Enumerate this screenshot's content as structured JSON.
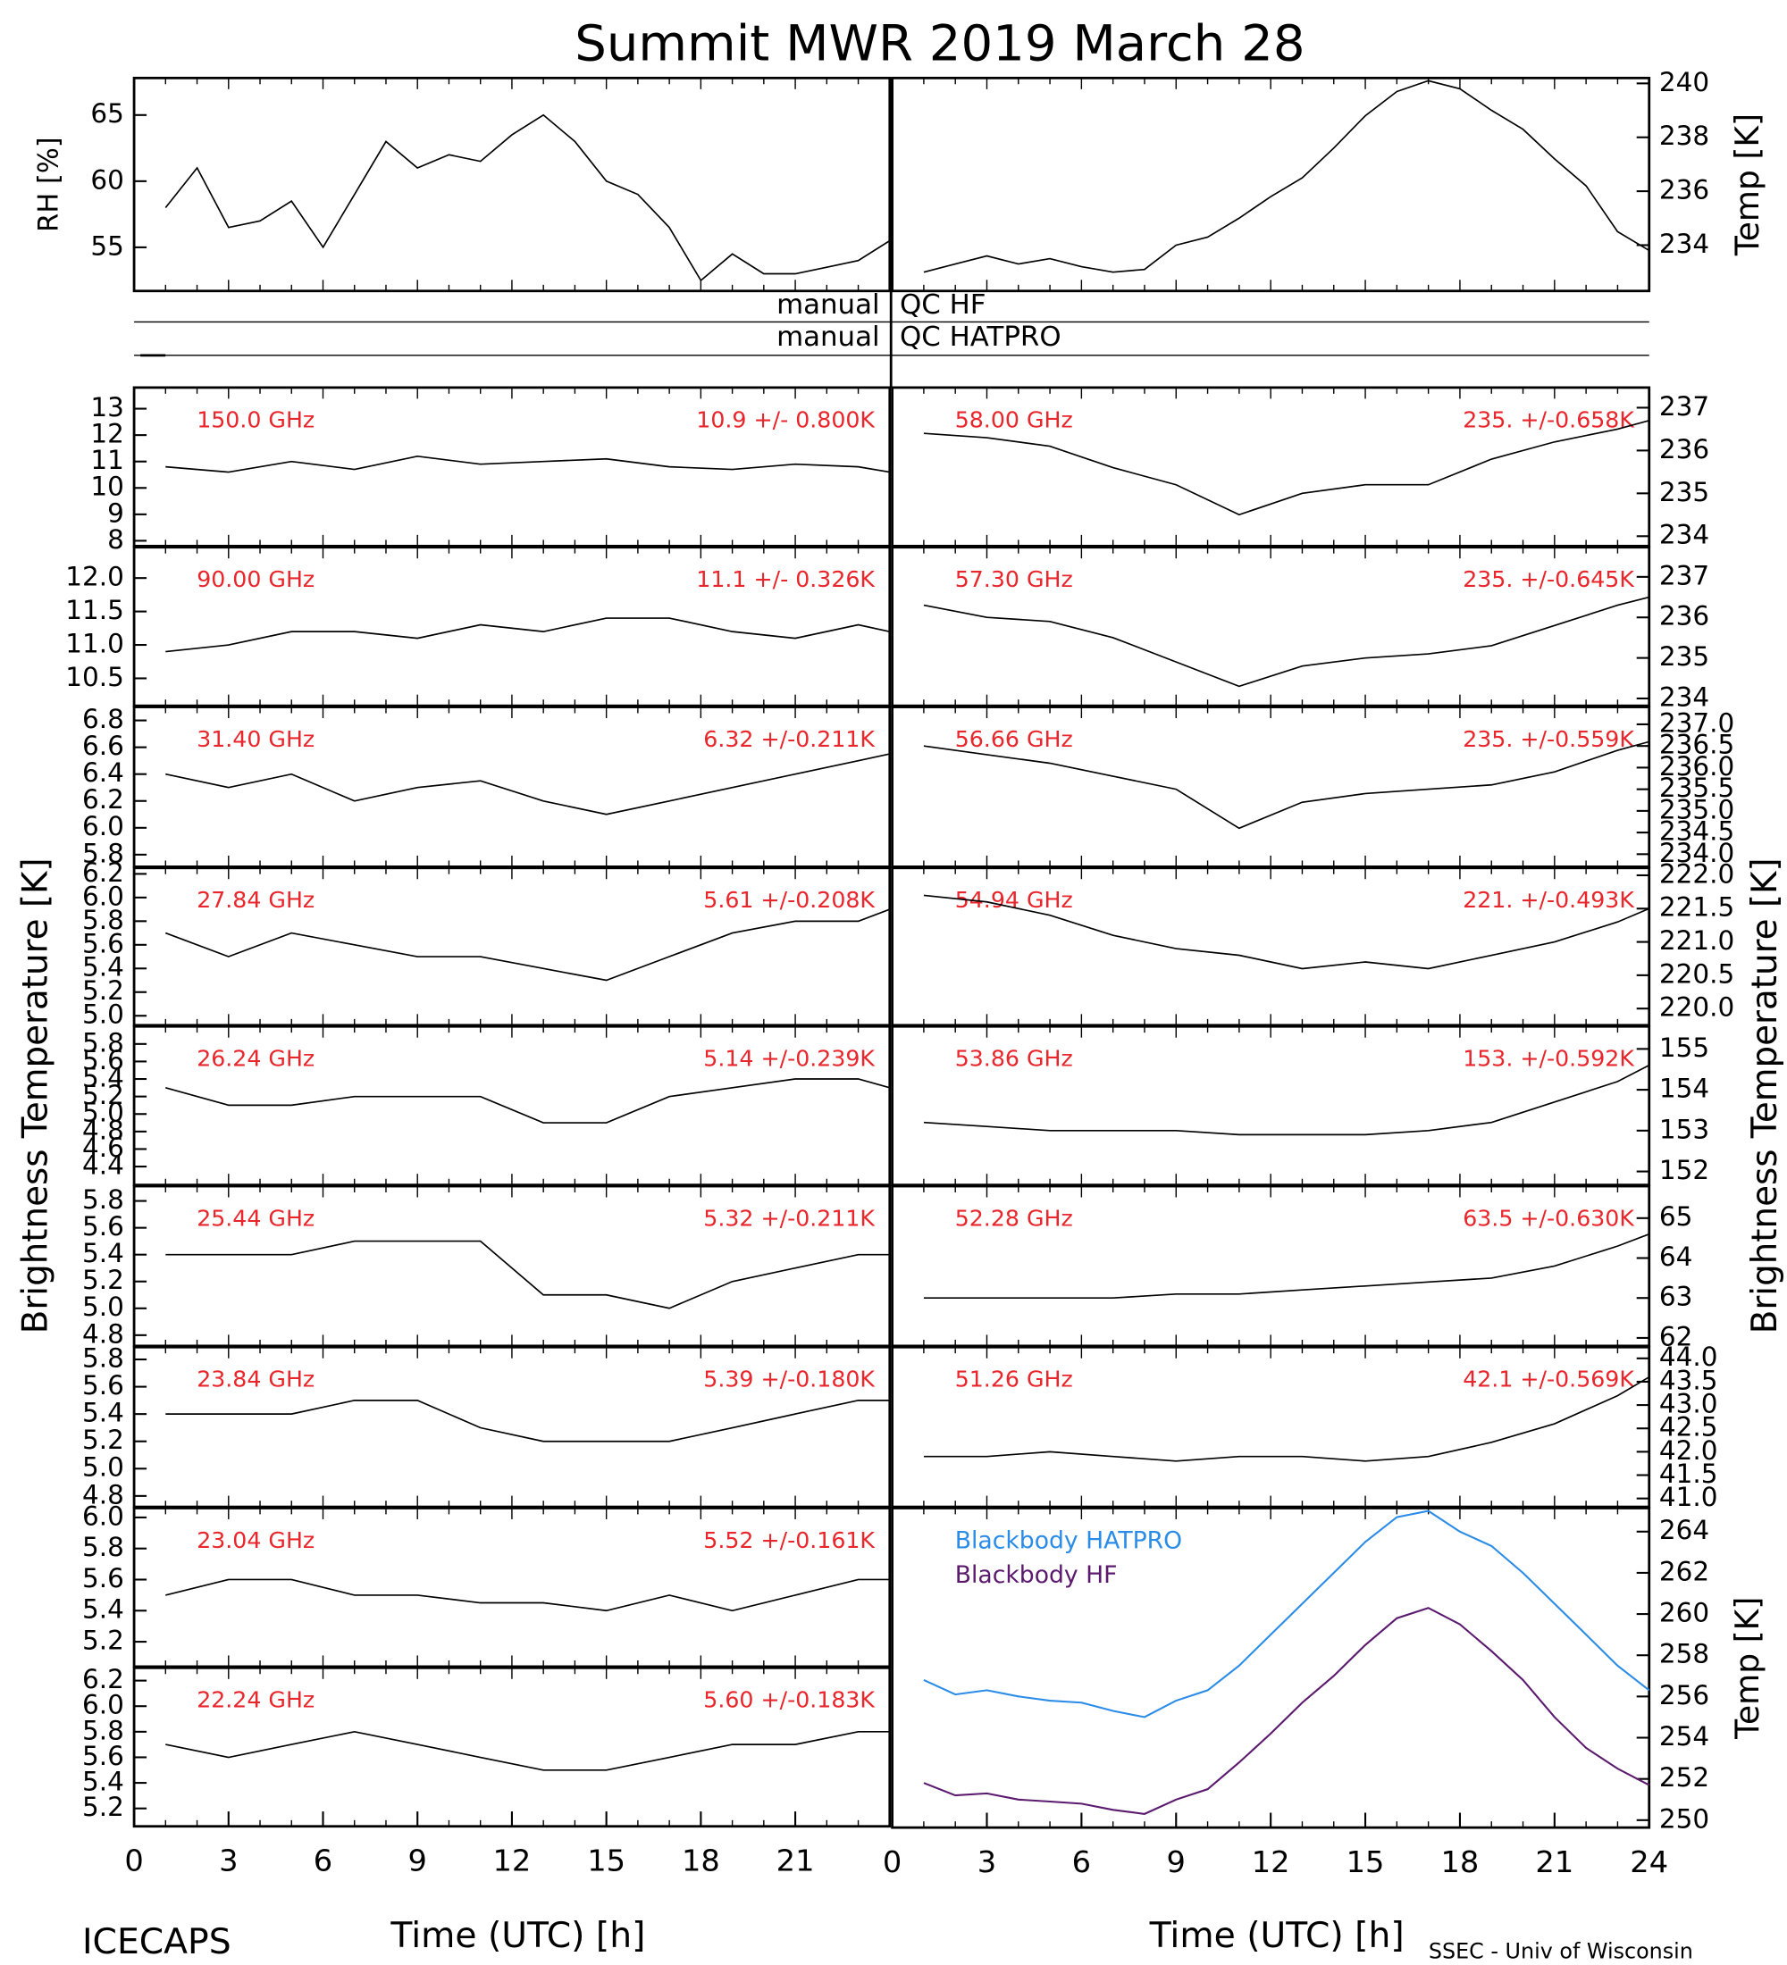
{
  "title": "Summit MWR 2019 March 28",
  "footer_left": "ICECAPS",
  "footer_right": "SSEC - Univ of Wisconsin",
  "ylabel_brightness": "Brightness Temperature [K]",
  "qc_rows": [
    {
      "left": "manual",
      "right": "QC HF"
    },
    {
      "left": "manual",
      "right": "QC HATPRO"
    }
  ],
  "chart_data": [
    {
      "type": "line",
      "ylabel": "RH [%]",
      "color": "#000000",
      "xlim": [
        0,
        24
      ],
      "ylim": [
        51.7,
        67.8
      ],
      "yticks": [
        55,
        60,
        65
      ],
      "x": [
        1,
        2,
        3,
        4,
        5,
        6,
        7,
        8,
        9,
        10,
        11,
        12,
        13,
        14,
        15,
        16,
        17,
        18,
        19,
        20,
        21,
        22,
        23,
        24
      ],
      "values": [
        58,
        61,
        56.5,
        57,
        58.5,
        55,
        59,
        63,
        61,
        62,
        61.5,
        63.5,
        65,
        63,
        60,
        59,
        56.5,
        52.5,
        54.5,
        53,
        53,
        53.5,
        54,
        55.5
      ]
    },
    {
      "type": "line",
      "ylabel": "Temp [K]",
      "color": "#000000",
      "xlim": [
        0,
        24
      ],
      "ylim": [
        232.3,
        240.2
      ],
      "yticks": [
        234,
        236,
        238,
        240
      ],
      "x": [
        1,
        2,
        3,
        4,
        5,
        6,
        7,
        8,
        9,
        10,
        11,
        12,
        13,
        14,
        15,
        16,
        17,
        18,
        19,
        20,
        21,
        22,
        23,
        24
      ],
      "values": [
        233,
        233.3,
        233.6,
        233.3,
        233.5,
        233.2,
        233,
        233.1,
        234,
        234.3,
        235,
        235.8,
        236.5,
        237.6,
        238.8,
        239.7,
        240.1,
        239.8,
        239,
        238.3,
        237.2,
        236.2,
        234.5,
        233.8
      ]
    },
    {
      "type": "line",
      "label": "150.0 GHz",
      "annotation": "10.9 +/- 0.800K",
      "color": "#000000",
      "xlim": [
        0,
        24
      ],
      "ylim": [
        7.8,
        13.8
      ],
      "yticks": [
        8,
        9,
        10,
        11,
        12,
        13
      ],
      "x": [
        1,
        3,
        5,
        7,
        9,
        11,
        13,
        15,
        17,
        19,
        21,
        23,
        24
      ],
      "values": [
        10.8,
        10.6,
        11,
        10.7,
        11.2,
        10.9,
        11,
        11.1,
        10.8,
        10.7,
        10.9,
        10.8,
        10.6
      ]
    },
    {
      "type": "line",
      "label": "90.00 GHz",
      "annotation": "11.1 +/- 0.326K",
      "color": "#000000",
      "xlim": [
        0,
        24
      ],
      "ylim": [
        10.09,
        12.46
      ],
      "yticks": [
        10.5,
        {
          "value": 11,
          "label": "11.0"
        },
        11.5,
        {
          "value": 12,
          "label": "12.0"
        }
      ],
      "x": [
        1,
        3,
        5,
        7,
        9,
        11,
        13,
        15,
        17,
        19,
        21,
        23,
        24
      ],
      "values": [
        10.9,
        11,
        11.2,
        11.2,
        11.1,
        11.3,
        11.2,
        11.4,
        11.4,
        11.2,
        11.1,
        11.3,
        11.2
      ]
    },
    {
      "type": "line",
      "label": "31.40 GHz",
      "annotation": "6.32 +/-0.211K",
      "color": "#000000",
      "xlim": [
        0,
        24
      ],
      "ylim": [
        5.71,
        6.9
      ],
      "yticks": [
        5.8,
        {
          "value": 6,
          "label": "6.0"
        },
        6.2,
        6.4,
        6.6,
        6.8
      ],
      "x": [
        1,
        3,
        5,
        7,
        9,
        11,
        13,
        15,
        17,
        19,
        21,
        23,
        24
      ],
      "values": [
        6.4,
        6.3,
        6.4,
        6.2,
        6.3,
        6.35,
        6.2,
        6.1,
        6.2,
        6.3,
        6.4,
        6.5,
        6.55
      ]
    },
    {
      "type": "line",
      "label": "27.84 GHz",
      "annotation": "5.61 +/-0.208K",
      "color": "#000000",
      "xlim": [
        0,
        24
      ],
      "ylim": [
        4.92,
        6.25
      ],
      "yticks": [
        {
          "value": 5,
          "label": "5.0"
        },
        5.2,
        5.4,
        5.6,
        5.8,
        {
          "value": 6,
          "label": "6.0"
        },
        6.2
      ],
      "x": [
        1,
        3,
        5,
        7,
        9,
        11,
        13,
        15,
        17,
        19,
        21,
        23,
        24
      ],
      "values": [
        5.7,
        5.5,
        5.7,
        5.6,
        5.5,
        5.5,
        5.4,
        5.3,
        5.5,
        5.7,
        5.8,
        5.8,
        5.9
      ]
    },
    {
      "type": "line",
      "label": "26.24 GHz",
      "annotation": "5.14 +/-0.239K",
      "color": "#000000",
      "xlim": [
        0,
        24
      ],
      "ylim": [
        4.19,
        6
      ],
      "yticks": [
        4.4,
        4.6,
        4.8,
        {
          "value": 5,
          "label": "5.0"
        },
        5.2,
        5.4,
        5.6,
        5.8
      ],
      "x": [
        1,
        3,
        5,
        7,
        9,
        11,
        13,
        15,
        17,
        19,
        21,
        23,
        24
      ],
      "values": [
        5.3,
        5.1,
        5.1,
        5.2,
        5.2,
        5.2,
        4.9,
        4.9,
        5.2,
        5.3,
        5.4,
        5.4,
        5.3
      ]
    },
    {
      "type": "line",
      "label": "25.44 GHz",
      "annotation": "5.32 +/-0.211K",
      "color": "#000000",
      "xlim": [
        0,
        24
      ],
      "ylim": [
        4.72,
        5.91
      ],
      "yticks": [
        4.8,
        {
          "value": 5,
          "label": "5.0"
        },
        5.2,
        5.4,
        5.6,
        5.8
      ],
      "x": [
        1,
        3,
        5,
        7,
        9,
        11,
        13,
        15,
        17,
        19,
        21,
        23,
        24
      ],
      "values": [
        5.4,
        5.4,
        5.4,
        5.5,
        5.5,
        5.5,
        5.1,
        5.1,
        5,
        5.2,
        5.3,
        5.4,
        5.4
      ]
    },
    {
      "type": "line",
      "label": "23.84 GHz",
      "annotation": "5.39 +/-0.180K",
      "color": "#000000",
      "xlim": [
        0,
        24
      ],
      "ylim": [
        4.72,
        5.89
      ],
      "yticks": [
        4.8,
        {
          "value": 5,
          "label": "5.0"
        },
        5.2,
        5.4,
        5.6,
        5.8
      ],
      "x": [
        1,
        3,
        5,
        7,
        9,
        11,
        13,
        15,
        17,
        19,
        21,
        23,
        24
      ],
      "values": [
        5.4,
        5.4,
        5.4,
        5.5,
        5.5,
        5.3,
        5.2,
        5.2,
        5.2,
        5.3,
        5.4,
        5.5,
        5.5
      ]
    },
    {
      "type": "line",
      "label": "23.04 GHz",
      "annotation": "5.52 +/-0.161K",
      "color": "#000000",
      "xlim": [
        0,
        24
      ],
      "ylim": [
        5.04,
        6.06
      ],
      "yticks": [
        5.2,
        5.4,
        5.6,
        5.8,
        {
          "value": 6,
          "label": "6.0"
        }
      ],
      "x": [
        1,
        3,
        5,
        7,
        9,
        11,
        13,
        15,
        17,
        19,
        21,
        23,
        24
      ],
      "values": [
        5.5,
        5.6,
        5.6,
        5.5,
        5.5,
        5.45,
        5.45,
        5.4,
        5.5,
        5.4,
        5.5,
        5.6,
        5.6
      ]
    },
    {
      "type": "line",
      "label": "22.24 GHz",
      "annotation": "5.60 +/-0.183K",
      "color": "#000000",
      "xlim": [
        0,
        24
      ],
      "ylim": [
        5.06,
        6.3
      ],
      "yticks": [
        5.2,
        5.4,
        5.6,
        5.8,
        {
          "value": 6,
          "label": "6.0"
        },
        6.2
      ],
      "xticks": [
        0,
        3,
        6,
        9,
        12,
        15,
        18,
        21
      ],
      "xlabel": "Time (UTC) [h]",
      "x": [
        1,
        3,
        5,
        7,
        9,
        11,
        13,
        15,
        17,
        19,
        21,
        23,
        24
      ],
      "values": [
        5.7,
        5.6,
        5.7,
        5.8,
        5.7,
        5.6,
        5.5,
        5.5,
        5.6,
        5.7,
        5.7,
        5.8,
        5.8
      ]
    },
    {
      "type": "line",
      "label": "58.00 GHz",
      "annotation": "235. +/-0.658K",
      "color": "#000000",
      "xlim": [
        0,
        24
      ],
      "ylim": [
        233.77,
        237.47
      ],
      "yticks": [
        234,
        235,
        236,
        237
      ],
      "x": [
        1,
        3,
        5,
        7,
        9,
        11,
        13,
        15,
        17,
        19,
        21,
        23,
        24
      ],
      "values": [
        236.4,
        236.3,
        236.1,
        235.6,
        235.2,
        234.5,
        235,
        235.2,
        235.2,
        235.8,
        236.2,
        236.5,
        236.7
      ]
    },
    {
      "type": "line",
      "label": "57.30 GHz",
      "annotation": "235. +/-0.645K",
      "color": "#000000",
      "xlim": [
        0,
        24
      ],
      "ylim": [
        233.82,
        237.73
      ],
      "yticks": [
        234,
        235,
        236,
        237
      ],
      "x": [
        1,
        3,
        5,
        7,
        9,
        11,
        13,
        15,
        17,
        19,
        21,
        23,
        24
      ],
      "values": [
        236.3,
        236,
        235.9,
        235.5,
        234.9,
        234.3,
        234.8,
        235,
        235.1,
        235.3,
        235.8,
        236.3,
        236.5
      ]
    },
    {
      "type": "line",
      "label": "56.66 GHz",
      "annotation": "235. +/-0.559K",
      "color": "#000000",
      "xlim": [
        0,
        24
      ],
      "ylim": [
        233.71,
        237.4
      ],
      "yticks": [
        {
          "value": 234,
          "label": "234.0"
        },
        234.5,
        {
          "value": 235,
          "label": "235.0"
        },
        235.5,
        {
          "value": 236,
          "label": "236.0"
        },
        236.5,
        {
          "value": 237,
          "label": "237.0"
        }
      ],
      "x": [
        1,
        3,
        5,
        7,
        9,
        11,
        13,
        15,
        17,
        19,
        21,
        23,
        24
      ],
      "values": [
        236.5,
        236.3,
        236.1,
        235.8,
        235.5,
        234.6,
        235.2,
        235.4,
        235.5,
        235.6,
        235.9,
        236.4,
        236.6
      ]
    },
    {
      "type": "line",
      "label": "54.94 GHz",
      "annotation": "221. +/-0.493K",
      "color": "#000000",
      "xlim": [
        0,
        24
      ],
      "ylim": [
        219.75,
        222.11
      ],
      "yticks": [
        {
          "value": 220,
          "label": "220.0"
        },
        220.5,
        {
          "value": 221,
          "label": "221.0"
        },
        221.5,
        {
          "value": 222,
          "label": "222.0"
        }
      ],
      "x": [
        1,
        3,
        5,
        7,
        9,
        11,
        13,
        15,
        17,
        19,
        21,
        23,
        24
      ],
      "values": [
        221.7,
        221.6,
        221.4,
        221.1,
        220.9,
        220.8,
        220.6,
        220.7,
        220.6,
        220.8,
        221,
        221.3,
        221.5
      ]
    },
    {
      "type": "line",
      "label": "53.86 GHz",
      "annotation": "153. +/-0.592K",
      "color": "#000000",
      "xlim": [
        0,
        24
      ],
      "ylim": [
        151.67,
        155.55
      ],
      "yticks": [
        152,
        153,
        154,
        155
      ],
      "x": [
        1,
        3,
        5,
        7,
        9,
        11,
        13,
        15,
        17,
        19,
        21,
        23,
        24
      ],
      "values": [
        153.2,
        153.1,
        153,
        153,
        153,
        152.9,
        152.9,
        152.9,
        153,
        153.2,
        153.7,
        154.2,
        154.6
      ]
    },
    {
      "type": "line",
      "label": "52.28 GHz",
      "annotation": "63.5 +/-0.630K",
      "color": "#000000",
      "xlim": [
        0,
        24
      ],
      "ylim": [
        61.8,
        65.8
      ],
      "yticks": [
        62,
        63,
        64,
        65
      ],
      "x": [
        1,
        3,
        5,
        7,
        9,
        11,
        13,
        15,
        17,
        19,
        21,
        23,
        24
      ],
      "values": [
        63,
        63,
        63,
        63,
        63.1,
        63.1,
        63.2,
        63.3,
        63.4,
        63.5,
        63.8,
        64.3,
        64.6
      ]
    },
    {
      "type": "line",
      "label": "51.26 GHz",
      "annotation": "42.1 +/-0.569K",
      "color": "#000000",
      "xlim": [
        0,
        24
      ],
      "ylim": [
        40.82,
        44.24
      ],
      "yticks": [
        {
          "value": 41,
          "label": "41.0"
        },
        41.5,
        {
          "value": 42,
          "label": "42.0"
        },
        42.5,
        {
          "value": 43,
          "label": "43.0"
        },
        43.5,
        {
          "value": 44,
          "label": "44.0"
        }
      ],
      "x": [
        1,
        3,
        5,
        7,
        9,
        11,
        13,
        15,
        17,
        19,
        21,
        23,
        24
      ],
      "values": [
        41.9,
        41.9,
        42,
        41.9,
        41.8,
        41.9,
        41.9,
        41.8,
        41.9,
        42.2,
        42.6,
        43.2,
        43.6
      ]
    },
    {
      "type": "line",
      "ylabel": "Temp [K]",
      "xlim": [
        0,
        24
      ],
      "ylim": [
        249.64,
        265.14
      ],
      "yticks": [
        250,
        252,
        254,
        256,
        258,
        260,
        262,
        264
      ],
      "xticks": [
        0,
        3,
        6,
        9,
        12,
        15,
        18,
        21,
        24
      ],
      "xlabel": "Time (UTC) [h]",
      "x": [
        1,
        2,
        3,
        4,
        5,
        6,
        7,
        8,
        9,
        10,
        11,
        12,
        13,
        14,
        15,
        16,
        17,
        18,
        19,
        20,
        21,
        22,
        23,
        24
      ],
      "series": [
        {
          "name": "Blackbody HATPRO",
          "color": "#2b8ce8",
          "values": [
            256.8,
            256.1,
            256.3,
            256,
            255.8,
            255.7,
            255.3,
            255,
            255.8,
            256.3,
            257.5,
            259,
            260.5,
            262,
            263.5,
            264.7,
            265,
            264,
            263.3,
            262,
            260.5,
            259,
            257.5,
            256.3
          ]
        },
        {
          "name": "Blackbody HF",
          "color": "#5b1a6e",
          "values": [
            251.8,
            251.2,
            251.3,
            251,
            250.9,
            250.8,
            250.5,
            250.3,
            251,
            251.5,
            252.8,
            254.2,
            255.7,
            257,
            258.5,
            259.8,
            260.3,
            259.5,
            258.2,
            256.8,
            255,
            253.5,
            252.5,
            251.7
          ]
        }
      ]
    }
  ]
}
